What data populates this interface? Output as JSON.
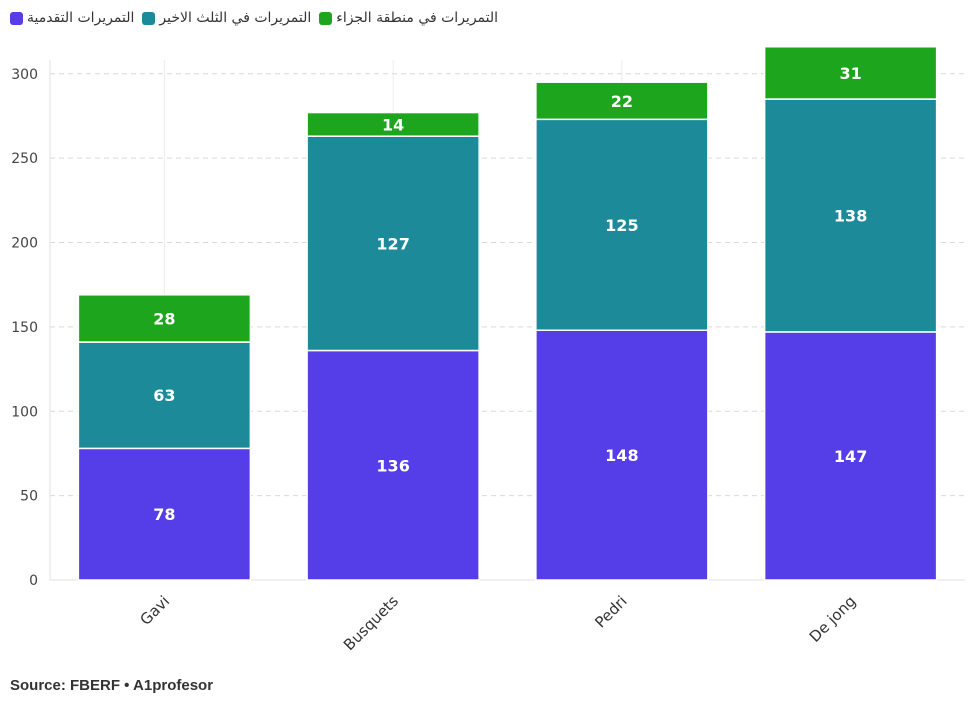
{
  "legend": {
    "items": [
      {
        "label": "التمريرات التقدمية",
        "color": "#553de8"
      },
      {
        "label": "التمريرات في الثلث الاخير",
        "color": "#1d8a9a"
      },
      {
        "label": "التمريرات في منطقة الجزاء",
        "color": "#1da51d"
      }
    ]
  },
  "source": "Source: FBERF • A1profesor",
  "chart_data": {
    "type": "bar",
    "stacked": true,
    "categories": [
      "Gavi",
      "Busquets",
      "Pedri",
      "De jong"
    ],
    "series": [
      {
        "name": "التمريرات التقدمية",
        "color": "#553de8",
        "values": [
          78,
          136,
          148,
          147
        ]
      },
      {
        "name": "التمريرات في الثلث الاخير",
        "color": "#1d8a9a",
        "values": [
          63,
          127,
          125,
          138
        ]
      },
      {
        "name": "التمريرات في منطقة الجزاء",
        "color": "#1da51d",
        "values": [
          28,
          14,
          22,
          31
        ]
      }
    ],
    "ylim": [
      0,
      320
    ],
    "yticks": [
      0,
      50,
      100,
      150,
      200,
      250,
      300
    ],
    "grid": true,
    "data_labels": true,
    "legend_position": "top-left"
  }
}
